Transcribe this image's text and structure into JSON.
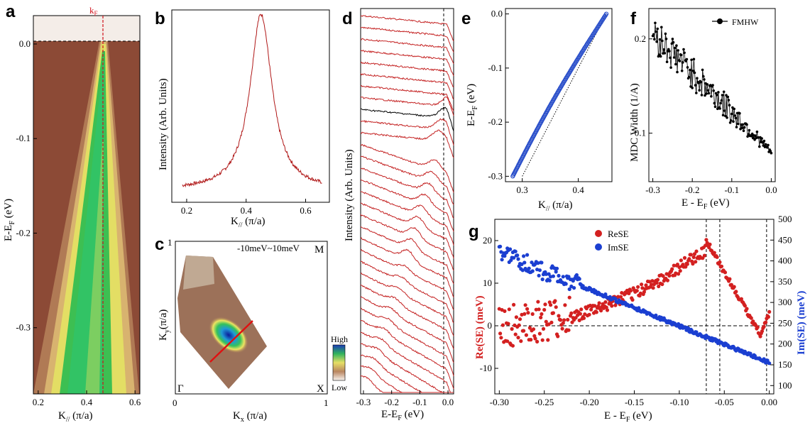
{
  "colors": {
    "red": "#d32020",
    "blue": "#1b3fd1",
    "black": "#000000",
    "dashed_red": "#d0101a"
  },
  "chart_data": [
    {
      "id": "a",
      "type": "heatmap",
      "panel_label": "a",
      "description_label": "k",
      "description_sub": "F",
      "xlabel_main": "K",
      "xlabel_sub": "//",
      "xlabel_rest": " (π/a)",
      "ylabel_main": "E-E",
      "ylabel_sub": "F",
      "ylabel_rest": " (eV)",
      "xlim": [
        0.18,
        0.62
      ],
      "ylim": [
        -0.37,
        0.03
      ],
      "xticks": [
        "0.2",
        "0.4",
        "0.6"
      ],
      "xtick_values": [
        0.2,
        0.4,
        0.6
      ],
      "yticks": [
        "0.0",
        "-0.1",
        "-0.2",
        "-0.3"
      ],
      "ytick_values": [
        0.0,
        -0.1,
        -0.2,
        -0.3
      ],
      "kf": 0.45
    },
    {
      "id": "b",
      "type": "line",
      "panel_label": "b",
      "ylabel": "Intensity (Arb. Units)",
      "xlabel_main": "K",
      "xlabel_sub": "//",
      "xlabel_rest": " (π/a)",
      "xlim": [
        0.15,
        0.68
      ],
      "xticks": [
        "0.2",
        "0.4",
        "0.6"
      ],
      "xtick_values": [
        0.2,
        0.4,
        0.6
      ],
      "peak_center": 0.45,
      "peak_hwhm": 0.045
    },
    {
      "id": "c",
      "type": "heatmap",
      "panel_label": "c",
      "annotation": "-10meV~10meV",
      "corner_top_right": "M",
      "corner_bottom_left": "Γ",
      "corner_bottom_right": "X",
      "colorbar_high": "High",
      "colorbar_low": "Low",
      "xlabel_main": "K",
      "xlabel_sub": "x",
      "xlabel_rest": " (π/a)",
      "ylabel_main": "K",
      "ylabel_sub": "y",
      "ylabel_rest": "(π/a)",
      "xlim": [
        0,
        1
      ],
      "ylim": [
        0,
        1
      ],
      "xticks": [
        "0",
        "1"
      ],
      "yticks": [
        "1"
      ]
    },
    {
      "id": "d",
      "type": "line",
      "panel_label": "d",
      "ylabel": "Intensity (Arb. Units)",
      "xlabel_main": "E-E",
      "xlabel_sub": "F",
      "xlabel_rest": " (eV)",
      "xlim": [
        -0.31,
        0.02
      ],
      "xticks": [
        "-0.3",
        "-0.2",
        "-0.1",
        "0.0"
      ],
      "xtick_values": [
        -0.3,
        -0.2,
        -0.1,
        0.0
      ],
      "n_curves": 32,
      "highlight_index": 8
    },
    {
      "id": "e",
      "type": "scatter",
      "panel_label": "e",
      "ylabel_main": "E-E",
      "ylabel_sub": "F",
      "ylabel_rest": " (eV)",
      "xlabel_main": "K",
      "xlabel_sub": "//",
      "xlabel_rest": " (π/a)",
      "xlim": [
        0.27,
        0.46
      ],
      "ylim": [
        -0.31,
        0.01
      ],
      "xticks": [
        "0.3",
        "0.4"
      ],
      "xtick_values": [
        0.3,
        0.4
      ],
      "yticks": [
        "0.0",
        "-0.1",
        "-0.2",
        "-0.3"
      ],
      "ytick_values": [
        0.0,
        -0.1,
        -0.2,
        -0.3
      ],
      "dispersion_start": [
        0.283,
        -0.3
      ],
      "dispersion_end": [
        0.45,
        0.0
      ],
      "bare_band_start": [
        0.3,
        -0.3
      ],
      "bare_band_end": [
        0.45,
        0.0
      ]
    },
    {
      "id": "f",
      "type": "line",
      "panel_label": "f",
      "legend": "FMHW",
      "ylabel": "MDC Width (1/A)",
      "xlabel": "E - E",
      "xlabel_sub": "F",
      "xlabel_rest": " (eV)",
      "xlim": [
        -0.31,
        0.01
      ],
      "ylim": [
        0.07,
        0.25
      ],
      "xticks": [
        "-0.3",
        "-0.2",
        "-0.1",
        "0.0"
      ],
      "xtick_values": [
        -0.3,
        -0.2,
        -0.1,
        0.0
      ],
      "yticks": [
        "0.2",
        "0.1"
      ],
      "ytick_values": [
        0.2,
        0.1
      ],
      "scale": "log",
      "width_start": 0.21,
      "width_end": 0.087
    },
    {
      "id": "g",
      "type": "scatter",
      "panel_label": "g",
      "series": [
        {
          "name": "ReSE",
          "color": "#d32020"
        },
        {
          "name": "ImSE",
          "color": "#1b3fd1"
        }
      ],
      "ylabel_left": "Re(SE) (meV)",
      "ylabel_right": "Im(SE) (meV)",
      "xlabel": "E - E",
      "xlabel_sub": "F",
      "xlabel_rest": " (eV)",
      "xlim": [
        -0.305,
        0.005
      ],
      "ylim_left": [
        -16,
        25
      ],
      "ylim_right": [
        80,
        500
      ],
      "xticks": [
        "-0.30",
        "-0.25",
        "-0.20",
        "-0.15",
        "-0.10",
        "-0.05",
        "0.00"
      ],
      "xtick_values": [
        -0.3,
        -0.25,
        -0.2,
        -0.15,
        -0.1,
        -0.05,
        0.0
      ],
      "yticks_left": [
        "20",
        "10",
        "0",
        "-10"
      ],
      "ytick_left_values": [
        20,
        10,
        0,
        -10
      ],
      "yticks_right": [
        "500",
        "450",
        "400",
        "350",
        "300",
        "250",
        "200",
        "150",
        "100"
      ],
      "ytick_right_values": [
        500,
        450,
        400,
        350,
        300,
        250,
        200,
        150,
        100
      ],
      "kink_energies": [
        -0.07,
        -0.055,
        -0.003
      ],
      "re_peak": [
        -0.07,
        20
      ],
      "im_start": 420,
      "im_end": 155
    }
  ]
}
